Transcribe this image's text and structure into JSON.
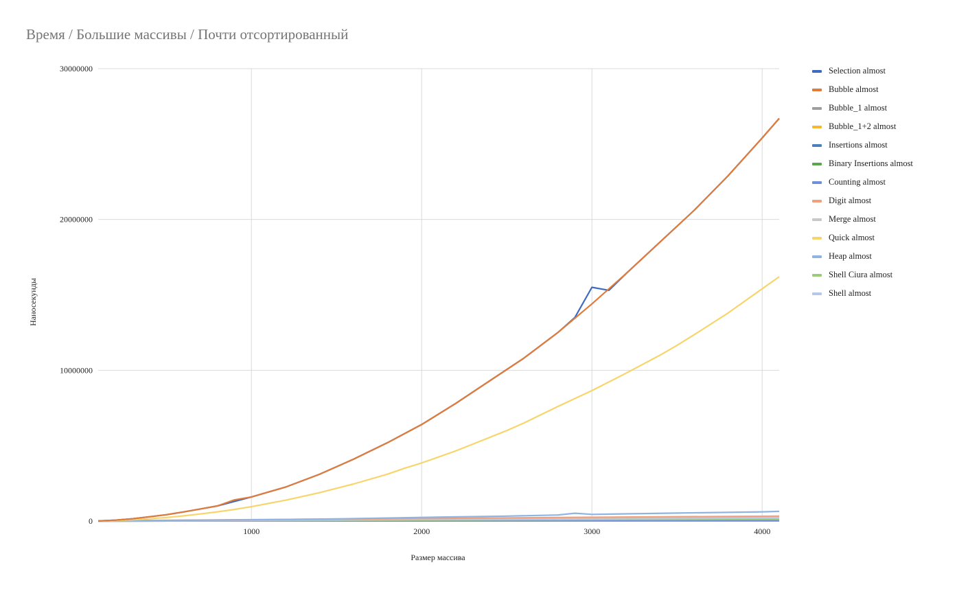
{
  "chart_data": {
    "type": "line",
    "title": "Время / Большие массивы / Почти отсортированный",
    "xlabel": "Размер массива",
    "ylabel": "Наносекунды",
    "xlim": [
      100,
      4100
    ],
    "ylim": [
      0,
      30000000
    ],
    "x_ticks": [
      1000,
      2000,
      3000,
      4000
    ],
    "y_ticks": [
      0,
      10000000,
      20000000,
      30000000
    ],
    "x_tick_labels": [
      "1000",
      "2000",
      "3000",
      "4000"
    ],
    "y_tick_labels": [
      "0",
      "10000000",
      "20000000",
      "30000000"
    ],
    "grid": true,
    "legend_position": "right",
    "series": [
      {
        "name": "Selection almost",
        "color": "#3f6bbf",
        "points": [
          [
            100,
            10000
          ],
          [
            200,
            60000
          ],
          [
            300,
            150000
          ],
          [
            400,
            280000
          ],
          [
            500,
            420000
          ],
          [
            600,
            600000
          ],
          [
            700,
            800000
          ],
          [
            800,
            1000000
          ],
          [
            900,
            1300000
          ],
          [
            1000,
            1600000
          ],
          [
            1200,
            2250000
          ],
          [
            1400,
            3100000
          ],
          [
            1600,
            4100000
          ],
          [
            1800,
            5200000
          ],
          [
            2000,
            6400000
          ],
          [
            2200,
            7800000
          ],
          [
            2400,
            9300000
          ],
          [
            2600,
            10800000
          ],
          [
            2800,
            12500000
          ],
          [
            2900,
            13500000
          ],
          [
            3000,
            15500000
          ],
          [
            3100,
            15300000
          ],
          [
            3200,
            16400000
          ],
          [
            3400,
            18500000
          ],
          [
            3600,
            20600000
          ],
          [
            3800,
            22900000
          ],
          [
            4000,
            25400000
          ],
          [
            4100,
            26700000
          ]
        ]
      },
      {
        "name": "Bubble almost",
        "color": "#e07b39",
        "points": [
          [
            100,
            10000
          ],
          [
            200,
            60000
          ],
          [
            300,
            150000
          ],
          [
            400,
            280000
          ],
          [
            500,
            420000
          ],
          [
            600,
            600000
          ],
          [
            700,
            800000
          ],
          [
            800,
            1000000
          ],
          [
            900,
            1400000
          ],
          [
            1000,
            1600000
          ],
          [
            1200,
            2250000
          ],
          [
            1400,
            3100000
          ],
          [
            1600,
            4100000
          ],
          [
            1800,
            5200000
          ],
          [
            2000,
            6400000
          ],
          [
            2200,
            7800000
          ],
          [
            2400,
            9300000
          ],
          [
            2600,
            10800000
          ],
          [
            2800,
            12500000
          ],
          [
            3000,
            14400000
          ],
          [
            3200,
            16400000
          ],
          [
            3400,
            18500000
          ],
          [
            3600,
            20600000
          ],
          [
            3800,
            22900000
          ],
          [
            4000,
            25400000
          ],
          [
            4100,
            26700000
          ]
        ]
      },
      {
        "name": "Bubble_1 almost",
        "color": "#9e9e9e",
        "points": [
          [
            100,
            0
          ],
          [
            1000,
            8000
          ],
          [
            2000,
            16000
          ],
          [
            3000,
            24000
          ],
          [
            4100,
            33000
          ]
        ]
      },
      {
        "name": "Bubble_1+2 almost",
        "color": "#f5b82e",
        "points": [
          [
            100,
            0
          ],
          [
            1000,
            6000
          ],
          [
            2000,
            12000
          ],
          [
            3000,
            18000
          ],
          [
            4100,
            25000
          ]
        ]
      },
      {
        "name": "Insertions almost",
        "color": "#4a7fc0",
        "points": [
          [
            100,
            0
          ],
          [
            1000,
            10000
          ],
          [
            2000,
            20000
          ],
          [
            3000,
            30000
          ],
          [
            4100,
            40000
          ]
        ]
      },
      {
        "name": "Binary Insertions almost",
        "color": "#5aa64a",
        "points": [
          [
            100,
            0
          ],
          [
            1000,
            15000
          ],
          [
            2000,
            30000
          ],
          [
            3000,
            45000
          ],
          [
            4100,
            60000
          ]
        ]
      },
      {
        "name": "Counting almost",
        "color": "#6f8fd6",
        "points": [
          [
            100,
            0
          ],
          [
            1000,
            5000
          ],
          [
            2000,
            10000
          ],
          [
            3000,
            15000
          ],
          [
            4100,
            20000
          ]
        ]
      },
      {
        "name": "Digit almost",
        "color": "#f0a07a",
        "points": [
          [
            100,
            20000
          ],
          [
            1000,
            90000
          ],
          [
            2000,
            170000
          ],
          [
            3000,
            250000
          ],
          [
            4100,
            330000
          ]
        ]
      },
      {
        "name": "Merge almost",
        "color": "#c8c8c8",
        "points": [
          [
            100,
            15000
          ],
          [
            1000,
            70000
          ],
          [
            2000,
            140000
          ],
          [
            3000,
            210000
          ],
          [
            4100,
            290000
          ]
        ]
      },
      {
        "name": "Quick almost",
        "color": "#f7d56a",
        "points": [
          [
            100,
            0
          ],
          [
            200,
            30000
          ],
          [
            300,
            80000
          ],
          [
            400,
            150000
          ],
          [
            500,
            230000
          ],
          [
            600,
            340000
          ],
          [
            700,
            470000
          ],
          [
            800,
            610000
          ],
          [
            900,
            770000
          ],
          [
            1000,
            950000
          ],
          [
            1200,
            1380000
          ],
          [
            1400,
            1880000
          ],
          [
            1600,
            2460000
          ],
          [
            1800,
            3110000
          ],
          [
            1900,
            3500000
          ],
          [
            2000,
            3850000
          ],
          [
            2200,
            4650000
          ],
          [
            2400,
            5550000
          ],
          [
            2500,
            6000000
          ],
          [
            2600,
            6500000
          ],
          [
            2800,
            7600000
          ],
          [
            3000,
            8650000
          ],
          [
            3200,
            9800000
          ],
          [
            3400,
            11000000
          ],
          [
            3500,
            11650000
          ],
          [
            3600,
            12350000
          ],
          [
            3800,
            13800000
          ],
          [
            4000,
            15400000
          ],
          [
            4100,
            16200000
          ]
        ]
      },
      {
        "name": "Heap almost",
        "color": "#8fb3e3",
        "points": [
          [
            100,
            10000
          ],
          [
            500,
            40000
          ],
          [
            1000,
            80000
          ],
          [
            1500,
            140000
          ],
          [
            2000,
            240000
          ],
          [
            2500,
            330000
          ],
          [
            2800,
            400000
          ],
          [
            2900,
            520000
          ],
          [
            3000,
            440000
          ],
          [
            3500,
            530000
          ],
          [
            4000,
            610000
          ],
          [
            4100,
            640000
          ]
        ]
      },
      {
        "name": "Shell Ciura almost",
        "color": "#9dca7d",
        "points": [
          [
            100,
            5000
          ],
          [
            1000,
            30000
          ],
          [
            2000,
            60000
          ],
          [
            3000,
            90000
          ],
          [
            4100,
            120000
          ]
        ]
      },
      {
        "name": "Shell almost",
        "color": "#b6c7ea",
        "points": [
          [
            100,
            5000
          ],
          [
            1000,
            45000
          ],
          [
            2000,
            95000
          ],
          [
            3000,
            145000
          ],
          [
            4100,
            195000
          ]
        ]
      }
    ]
  }
}
